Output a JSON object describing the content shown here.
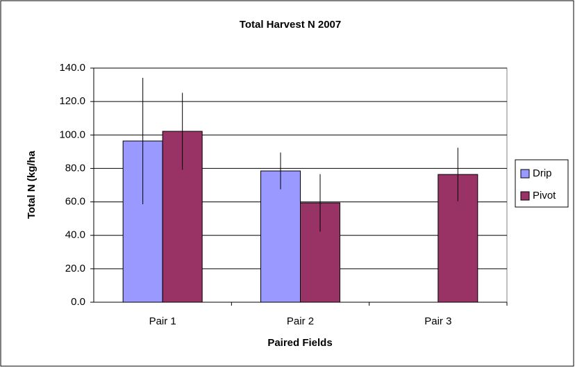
{
  "chart_data": {
    "type": "bar",
    "title": "Total Harvest N 2007",
    "x_label": "Paired Fields",
    "y_label": "Total N (kg/ha",
    "categories": [
      "Pair 1",
      "Pair 2",
      "Pair 3"
    ],
    "series": [
      {
        "name": "Drip",
        "color": "#9999ff",
        "values": [
          96.4,
          78.5,
          null
        ],
        "errors": [
          37.8,
          11.0,
          null
        ]
      },
      {
        "name": "Pivot",
        "color": "#993366",
        "values": [
          102.2,
          59.4,
          76.4
        ],
        "errors": [
          23.0,
          17.2,
          16.0
        ]
      }
    ],
    "ylim": [
      0,
      140
    ],
    "yticks": [
      {
        "value": 0,
        "label": "0.0"
      },
      {
        "value": 20,
        "label": "20.0"
      },
      {
        "value": 40,
        "label": "40.0"
      },
      {
        "value": 60,
        "label": "60.0"
      },
      {
        "value": 80,
        "label": "80.0"
      },
      {
        "value": 100,
        "label": "100.0"
      },
      {
        "value": 120,
        "label": "120.0"
      },
      {
        "value": 140,
        "label": "140.0"
      }
    ],
    "grid": true,
    "legend": "right"
  }
}
